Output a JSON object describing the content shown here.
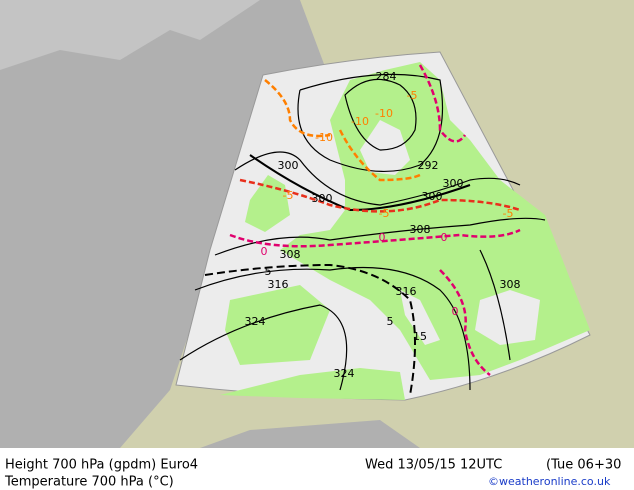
{
  "footer": {
    "title_height": "Height 700 hPa (gpdm) Euro4",
    "title_temperature": "Temperature 700 hPa (°C)",
    "valid_time": "Wed 13/05/15 12UTC",
    "lead_time": "(Tue 06+30",
    "credit": "©weatheronline.co.uk"
  },
  "contour_labels": {
    "height": [
      "284",
      "292",
      "300",
      "300",
      "300",
      "300",
      "308",
      "308",
      "308",
      "316",
      "316",
      "324",
      "324"
    ],
    "temperature": [
      "-10",
      "-10",
      "-10",
      "-5",
      "-5",
      "-5",
      "-5",
      "0",
      "0",
      "0",
      "0",
      "5",
      "5",
      "15"
    ]
  }
}
